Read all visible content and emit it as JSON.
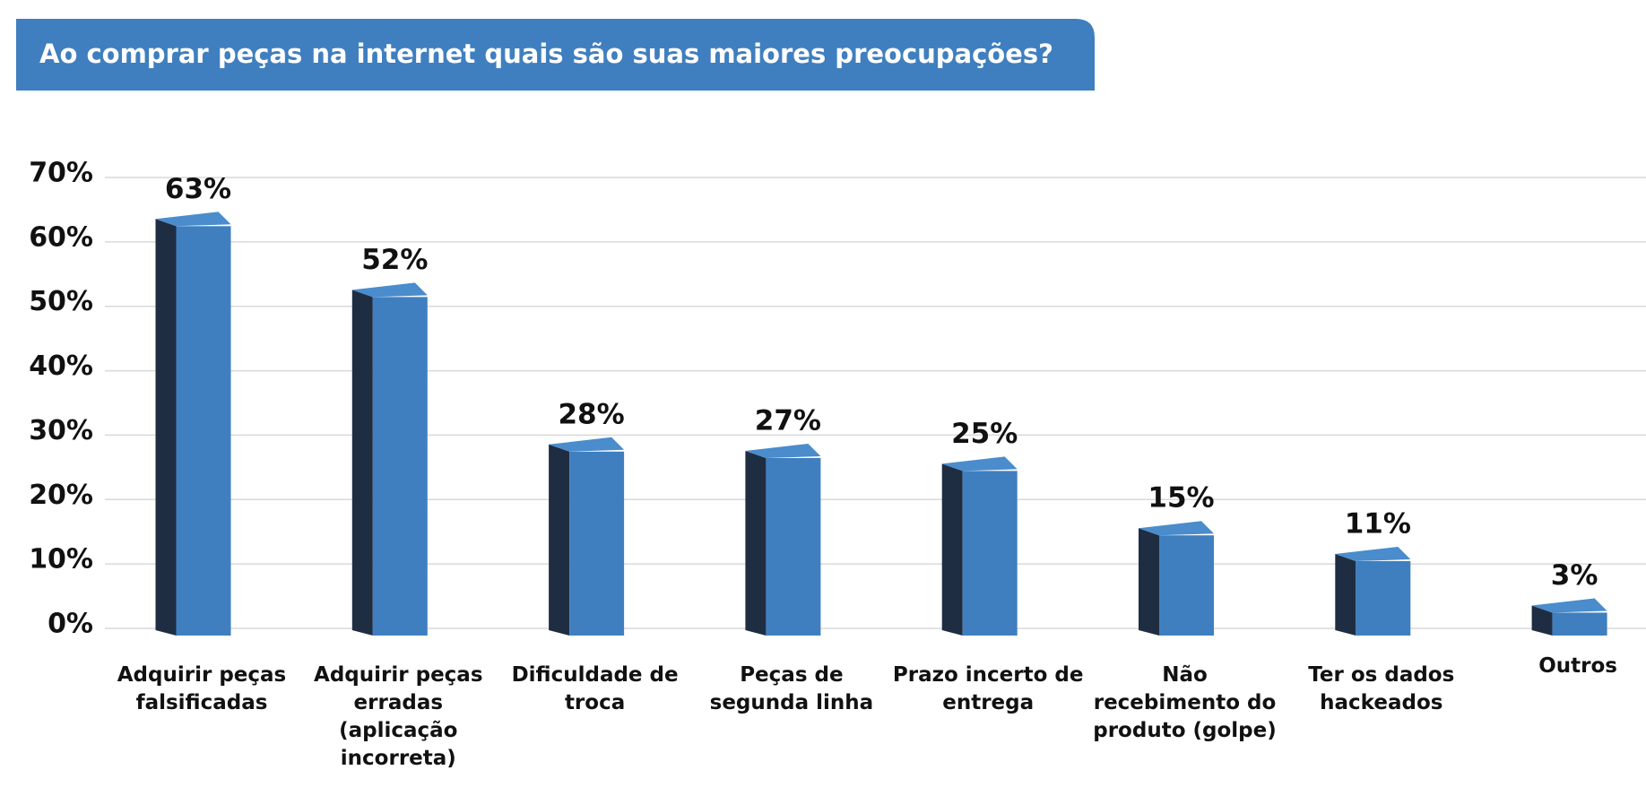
{
  "chart_data": {
    "type": "bar3d",
    "title": "Ao comprar peças na internet quais são suas maiores preocupações?",
    "categories": [
      "Adquirir peças falsificadas",
      "Adquirir peças erradas (aplicação incorreta)",
      "Dificuldade de troca",
      "Peças de segunda linha",
      "Prazo incerto de entrega",
      "Não recebimento do produto (golpe)",
      "Ter os dados hackeados",
      "Outros"
    ],
    "values": [
      63,
      52,
      28,
      27,
      25,
      15,
      11,
      3
    ],
    "value_labels": [
      "63%",
      "52%",
      "28%",
      "27%",
      "25%",
      "15%",
      "11%",
      "3%"
    ],
    "color": "#3f7fbf",
    "ylim": [
      0,
      70
    ],
    "yticks": [
      {
        "value": 0,
        "label": "0%"
      },
      {
        "value": 10,
        "label": "10%"
      },
      {
        "value": 20,
        "label": "20%"
      },
      {
        "value": 30,
        "label": "30%"
      },
      {
        "value": 40,
        "label": "40%"
      },
      {
        "value": 50,
        "label": "50%"
      },
      {
        "value": 60,
        "label": "60%"
      },
      {
        "value": 70,
        "label": "70%"
      }
    ],
    "grid": true
  }
}
